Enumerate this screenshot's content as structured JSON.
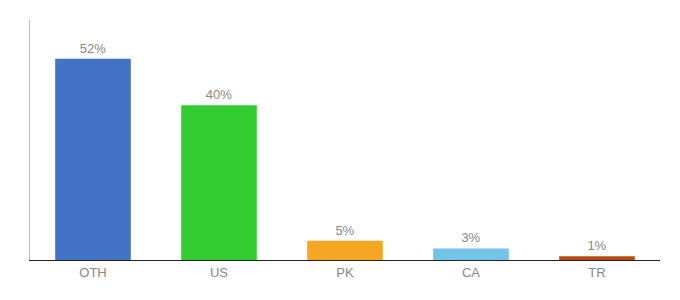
{
  "chart_data": {
    "type": "bar",
    "categories": [
      "OTH",
      "US",
      "PK",
      "CA",
      "TR"
    ],
    "values": [
      52,
      40,
      5,
      3,
      1
    ],
    "value_labels": [
      "52%",
      "40%",
      "5%",
      "3%",
      "1%"
    ],
    "colors": [
      "#4472c4",
      "#33cc33",
      "#f5a623",
      "#74c4e8",
      "#b84c10"
    ],
    "ylim": [
      0,
      62
    ],
    "data_labels": true,
    "tick_labels": "x",
    "grid": false
  }
}
